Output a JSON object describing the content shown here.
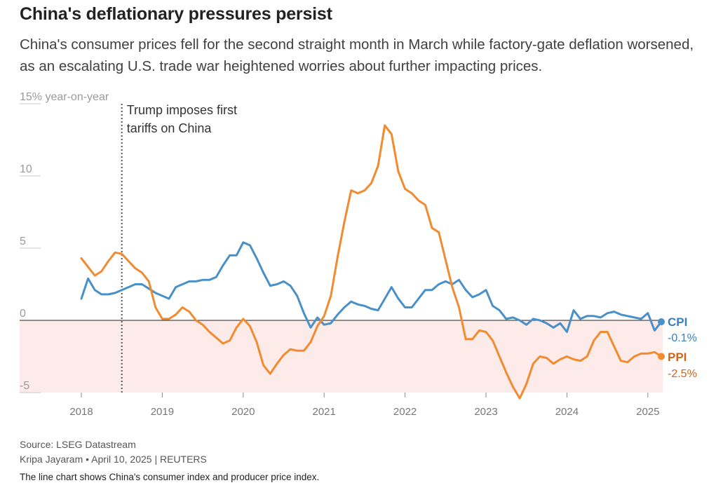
{
  "title": "China's deflationary pressures persist",
  "subtitle": "China's consumer prices fell for the second straight month in March while factory-gate deflation worsened, as an escalating U.S. trade war heightened worries about further impacting prices.",
  "footer": {
    "source": "Source: LSEG Datastream",
    "byline": "Kripa Jayaram • April 10, 2025 | REUTERS",
    "note": "The line chart shows China's consumer index and producer price index."
  },
  "colors": {
    "cpi": "#4a90c8",
    "ppi": "#f28a30",
    "ppi_label": "#d0641a",
    "negative_band": "#fdebe9"
  },
  "chart_data": {
    "type": "line",
    "title": "China's deflationary pressures persist",
    "ylabel": "15% year-on-year",
    "ylim": [
      -5,
      15
    ],
    "y_ticks": [
      {
        "value": 15,
        "label": "15% year-on-year"
      },
      {
        "value": 10,
        "label": "10"
      },
      {
        "value": 5,
        "label": "5"
      },
      {
        "value": 0,
        "label": "0"
      },
      {
        "value": -5,
        "label": "-5"
      }
    ],
    "xlim": [
      2017.6,
      2025.3
    ],
    "x_ticks": [
      {
        "value": 2018,
        "label": "2018"
      },
      {
        "value": 2019,
        "label": "2019"
      },
      {
        "value": 2020,
        "label": "2020"
      },
      {
        "value": 2021,
        "label": "2021"
      },
      {
        "value": 2022,
        "label": "2022"
      },
      {
        "value": 2023,
        "label": "2023"
      },
      {
        "value": 2024,
        "label": "2024"
      },
      {
        "value": 2025,
        "label": "2025"
      }
    ],
    "annotation": {
      "x": 2018.5,
      "lines": [
        "Trump imposes first",
        "tariffs on China"
      ]
    },
    "start": 2018.0,
    "step": 0.08333,
    "series": [
      {
        "name": "CPI",
        "end_label": "-0.1%",
        "values": [
          1.5,
          2.9,
          2.1,
          1.8,
          1.8,
          1.9,
          2.1,
          2.3,
          2.5,
          2.5,
          2.2,
          1.9,
          1.7,
          1.5,
          2.3,
          2.5,
          2.7,
          2.7,
          2.8,
          2.8,
          3.0,
          3.8,
          4.5,
          4.5,
          5.4,
          5.2,
          4.3,
          3.3,
          2.4,
          2.5,
          2.7,
          2.4,
          1.7,
          0.5,
          -0.5,
          0.2,
          -0.3,
          -0.2,
          0.4,
          0.9,
          1.3,
          1.1,
          1.0,
          0.8,
          0.7,
          1.5,
          2.3,
          1.5,
          0.9,
          0.9,
          1.5,
          2.1,
          2.1,
          2.5,
          2.7,
          2.5,
          2.8,
          2.1,
          1.6,
          1.8,
          2.1,
          1.0,
          0.7,
          0.1,
          0.2,
          0.0,
          -0.3,
          0.1,
          0.0,
          -0.2,
          -0.5,
          -0.2,
          -0.8,
          0.7,
          0.1,
          0.3,
          0.3,
          0.2,
          0.5,
          0.6,
          0.4,
          0.3,
          0.2,
          0.1,
          0.5,
          -0.7,
          -0.1
        ]
      },
      {
        "name": "PPI",
        "end_label": "-2.5%",
        "values": [
          4.3,
          3.7,
          3.1,
          3.4,
          4.1,
          4.7,
          4.6,
          4.1,
          3.6,
          3.3,
          2.7,
          0.9,
          0.1,
          0.1,
          0.4,
          0.9,
          0.6,
          0.0,
          -0.3,
          -0.8,
          -1.2,
          -1.6,
          -1.4,
          -0.5,
          0.1,
          -0.4,
          -1.5,
          -3.1,
          -3.7,
          -3.0,
          -2.4,
          -2.0,
          -2.1,
          -2.1,
          -1.5,
          -0.4,
          0.3,
          1.7,
          4.4,
          6.8,
          9.0,
          8.8,
          9.0,
          9.5,
          10.7,
          13.5,
          12.9,
          10.3,
          9.1,
          8.8,
          8.3,
          8.0,
          6.4,
          6.1,
          4.2,
          2.3,
          0.9,
          -1.3,
          -1.3,
          -0.7,
          -0.8,
          -1.4,
          -2.5,
          -3.6,
          -4.6,
          -5.4,
          -4.4,
          -3.0,
          -2.5,
          -2.6,
          -3.0,
          -2.7,
          -2.5,
          -2.7,
          -2.8,
          -2.5,
          -1.4,
          -0.8,
          -0.8,
          -1.8,
          -2.8,
          -2.9,
          -2.5,
          -2.3,
          -2.3,
          -2.2,
          -2.5
        ]
      }
    ]
  }
}
